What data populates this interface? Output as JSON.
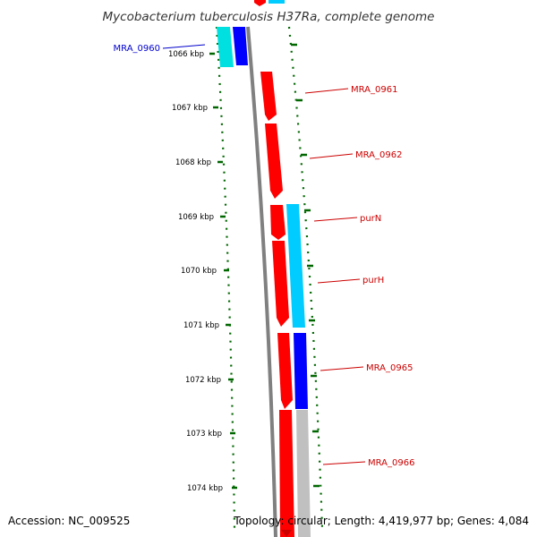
{
  "title": "Mycobacterium tuberculosis H37Ra, complete genome",
  "footer": {
    "accession": "Accession: NC_009525",
    "stats": "Topology: circular; Length: 4,419,977 bp; Genes: 4,084"
  },
  "colors": {
    "backbone": "#808080",
    "forward_gene": "#ff0000",
    "reverse_gene": "#0000ff",
    "cyan_feature": "#00ccff",
    "gray_feature": "#c0c0c0",
    "tick": "#006600",
    "label_blue": "#0000cc",
    "label_red": "#cc0000"
  },
  "scale_labels": [
    "1066 kbp",
    "1067 kbp",
    "1068 kbp",
    "1069 kbp",
    "1070 kbp",
    "1071 kbp",
    "1072 kbp",
    "1073 kbp",
    "1074 kbp"
  ],
  "gene_labels": [
    {
      "name": "MRA_0960",
      "color": "blue"
    },
    {
      "name": "MRA_0961",
      "color": "red"
    },
    {
      "name": "MRA_0962",
      "color": "red"
    },
    {
      "name": "purN",
      "color": "red"
    },
    {
      "name": "purH",
      "color": "red"
    },
    {
      "name": "MRA_0965",
      "color": "red"
    },
    {
      "name": "MRA_0966",
      "color": "red"
    }
  ]
}
